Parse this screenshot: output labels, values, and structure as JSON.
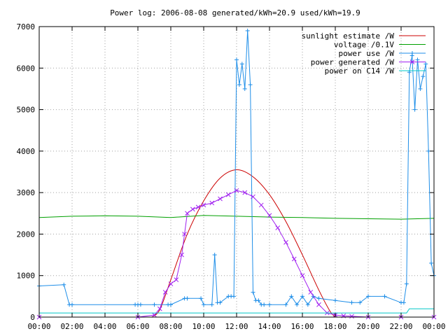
{
  "chart_data": {
    "type": "line",
    "title": "Power log: 2006-08-08 generated/kWh=20.9 used/kWh=19.9",
    "xlabel": "",
    "ylabel": "",
    "xlim": [
      "00:00",
      "24:00"
    ],
    "ylim": [
      0,
      7000
    ],
    "x_ticks": [
      "00:00",
      "02:00",
      "04:00",
      "06:00",
      "08:00",
      "10:00",
      "12:00",
      "14:00",
      "16:00",
      "18:00",
      "20:00",
      "22:00",
      "00:00"
    ],
    "y_ticks": [
      0,
      1000,
      2000,
      3000,
      4000,
      5000,
      6000,
      7000
    ],
    "grid": true,
    "legend_position": "top-right",
    "series": [
      {
        "name": "sunlight estimate /W",
        "color": "#cc0000",
        "marker": "none",
        "x": [
          "06:50",
          "07:20",
          "08:00",
          "09:00",
          "10:00",
          "11:00",
          "12:00",
          "13:00",
          "14:00",
          "15:00",
          "16:00",
          "17:00",
          "17:40",
          "18:00"
        ],
        "y": [
          0,
          180,
          900,
          2000,
          2800,
          3350,
          3550,
          3380,
          2950,
          2300,
          1500,
          650,
          150,
          0
        ]
      },
      {
        "name": "voltage /0.1V",
        "color": "#00a000",
        "marker": "none",
        "x": [
          "00:00",
          "02:00",
          "04:00",
          "06:00",
          "08:00",
          "10:00",
          "12:00",
          "14:00",
          "16:00",
          "18:00",
          "20:00",
          "22:00",
          "24:00"
        ],
        "y": [
          2400,
          2430,
          2440,
          2430,
          2400,
          2450,
          2430,
          2410,
          2400,
          2380,
          2370,
          2360,
          2380
        ]
      },
      {
        "name": "power use /W",
        "color": "#1e8ee8",
        "marker": "plus",
        "x": [
          "00:00",
          "01:30",
          "01:50",
          "02:00",
          "05:50",
          "06:00",
          "06:10",
          "07:00",
          "07:50",
          "08:00",
          "08:50",
          "09:00",
          "09:50",
          "10:00",
          "10:30",
          "10:40",
          "10:50",
          "11:00",
          "11:30",
          "11:40",
          "11:50",
          "12:00",
          "12:10",
          "12:20",
          "12:30",
          "12:40",
          "12:50",
          "13:00",
          "13:10",
          "13:20",
          "13:30",
          "13:40",
          "14:00",
          "15:00",
          "15:20",
          "15:40",
          "16:00",
          "16:20",
          "16:40",
          "17:00",
          "18:00",
          "19:00",
          "19:30",
          "20:00",
          "21:00",
          "22:00",
          "22:10",
          "22:20",
          "22:30",
          "22:40",
          "22:50",
          "23:00",
          "23:10",
          "23:20",
          "23:30",
          "23:40",
          "23:50",
          "24:00"
        ],
        "y": [
          750,
          780,
          300,
          300,
          300,
          300,
          300,
          300,
          300,
          300,
          450,
          450,
          450,
          300,
          300,
          1500,
          350,
          350,
          500,
          500,
          500,
          6200,
          5600,
          6100,
          5500,
          6900,
          5600,
          600,
          400,
          400,
          300,
          300,
          300,
          300,
          500,
          300,
          500,
          300,
          500,
          450,
          400,
          350,
          350,
          500,
          500,
          350,
          350,
          800,
          5900,
          6300,
          5000,
          6200,
          5500,
          5800,
          6100,
          4000,
          1300,
          1000
        ]
      },
      {
        "name": "power generated /W",
        "color": "#a020f0",
        "marker": "cross",
        "x": [
          "00:00",
          "06:00",
          "07:00",
          "07:20",
          "07:40",
          "08:00",
          "08:20",
          "08:40",
          "08:50",
          "09:00",
          "09:20",
          "09:40",
          "10:00",
          "10:30",
          "11:00",
          "11:30",
          "12:00",
          "12:30",
          "13:00",
          "13:30",
          "14:00",
          "14:30",
          "15:00",
          "15:30",
          "16:00",
          "16:30",
          "17:00",
          "17:30",
          "18:00",
          "18:30",
          "19:00",
          "20:00",
          "22:00",
          "24:00"
        ],
        "y": [
          0,
          0,
          50,
          200,
          600,
          800,
          900,
          1500,
          2000,
          2500,
          2600,
          2650,
          2700,
          2750,
          2850,
          2950,
          3050,
          3000,
          2900,
          2700,
          2450,
          2150,
          1800,
          1400,
          1000,
          600,
          300,
          100,
          50,
          30,
          20,
          0,
          0,
          0
        ]
      },
      {
        "name": "power on C14 /W",
        "color": "#00c8c8",
        "marker": "none",
        "x": [
          "00:00",
          "22:20",
          "22:30",
          "24:00"
        ],
        "y": [
          100,
          100,
          200,
          200
        ]
      }
    ]
  }
}
